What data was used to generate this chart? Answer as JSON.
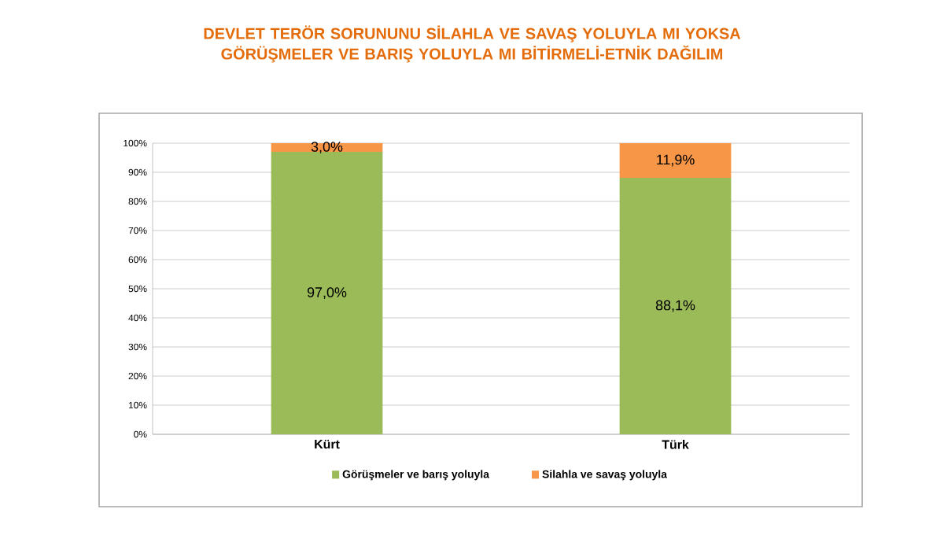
{
  "chart_data": {
    "type": "bar",
    "title": "DEVLET TERÖR SORUNUNU SİLAHLA VE SAVAŞ YOLUYLA MI YOKSA GÖRÜŞMELER VE BARIŞ YOLUYLA MI BİTİRMELİ-ETNİK DAĞILIM",
    "categories": [
      "Kürt",
      "Türk"
    ],
    "stacked": true,
    "series": [
      {
        "name": "Görüşmeler ve barış yoluyla",
        "color": "#9bbb59",
        "values": [
          97.0,
          88.1
        ],
        "value_labels": [
          "97,0%",
          "88,1%"
        ]
      },
      {
        "name": "Silahla ve savaş yoluyla",
        "color": "#f79646",
        "values": [
          3.0,
          11.9
        ],
        "value_labels": [
          "3,0%",
          "11,9%"
        ]
      }
    ],
    "ylim": [
      0,
      100
    ],
    "yticks": [
      {
        "value": 0,
        "label": "0%"
      },
      {
        "value": 10,
        "label": "10%"
      },
      {
        "value": 20,
        "label": "20%"
      },
      {
        "value": 30,
        "label": "30%"
      },
      {
        "value": 40,
        "label": "40%"
      },
      {
        "value": 50,
        "label": "50%"
      },
      {
        "value": 60,
        "label": "60%"
      },
      {
        "value": 70,
        "label": "70%"
      },
      {
        "value": 80,
        "label": "80%"
      },
      {
        "value": 90,
        "label": "90%"
      },
      {
        "value": 100,
        "label": "100%"
      }
    ],
    "grid": "y",
    "legend": "bottom"
  }
}
